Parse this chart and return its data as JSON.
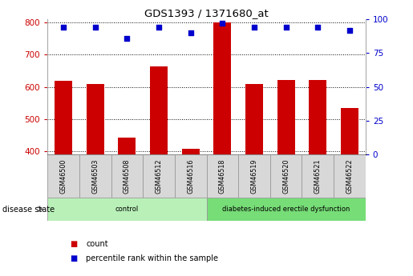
{
  "title": "GDS1393 / 1371680_at",
  "samples": [
    "GSM46500",
    "GSM46503",
    "GSM46508",
    "GSM46512",
    "GSM46516",
    "GSM46518",
    "GSM46519",
    "GSM46520",
    "GSM46521",
    "GSM46522"
  ],
  "counts": [
    620,
    608,
    443,
    663,
    409,
    800,
    610,
    622,
    622,
    534
  ],
  "percentiles": [
    94,
    94,
    86,
    94,
    90,
    97,
    94,
    94,
    94,
    92
  ],
  "ylim_left": [
    390,
    810
  ],
  "ylim_right": [
    0,
    100
  ],
  "yticks_left": [
    400,
    500,
    600,
    700,
    800
  ],
  "yticks_right": [
    0,
    25,
    50,
    75,
    100
  ],
  "bar_color": "#cc0000",
  "dot_color": "#0000cc",
  "bar_bottom": 390,
  "groups": [
    {
      "label": "control",
      "start": 0,
      "end": 5,
      "color": "#aaffaa"
    },
    {
      "label": "diabetes-induced erectile dysfunction",
      "start": 5,
      "end": 10,
      "color": "#88ee88"
    }
  ],
  "disease_state_label": "disease state",
  "legend_count": "count",
  "legend_percentile": "percentile rank within the sample",
  "tick_label_color_left": "#cc0000",
  "tick_label_color_right": "#0000cc",
  "label_bg_color": "#d8d8d8",
  "group1_color": "#b8f0b8",
  "group2_color": "#77dd77"
}
